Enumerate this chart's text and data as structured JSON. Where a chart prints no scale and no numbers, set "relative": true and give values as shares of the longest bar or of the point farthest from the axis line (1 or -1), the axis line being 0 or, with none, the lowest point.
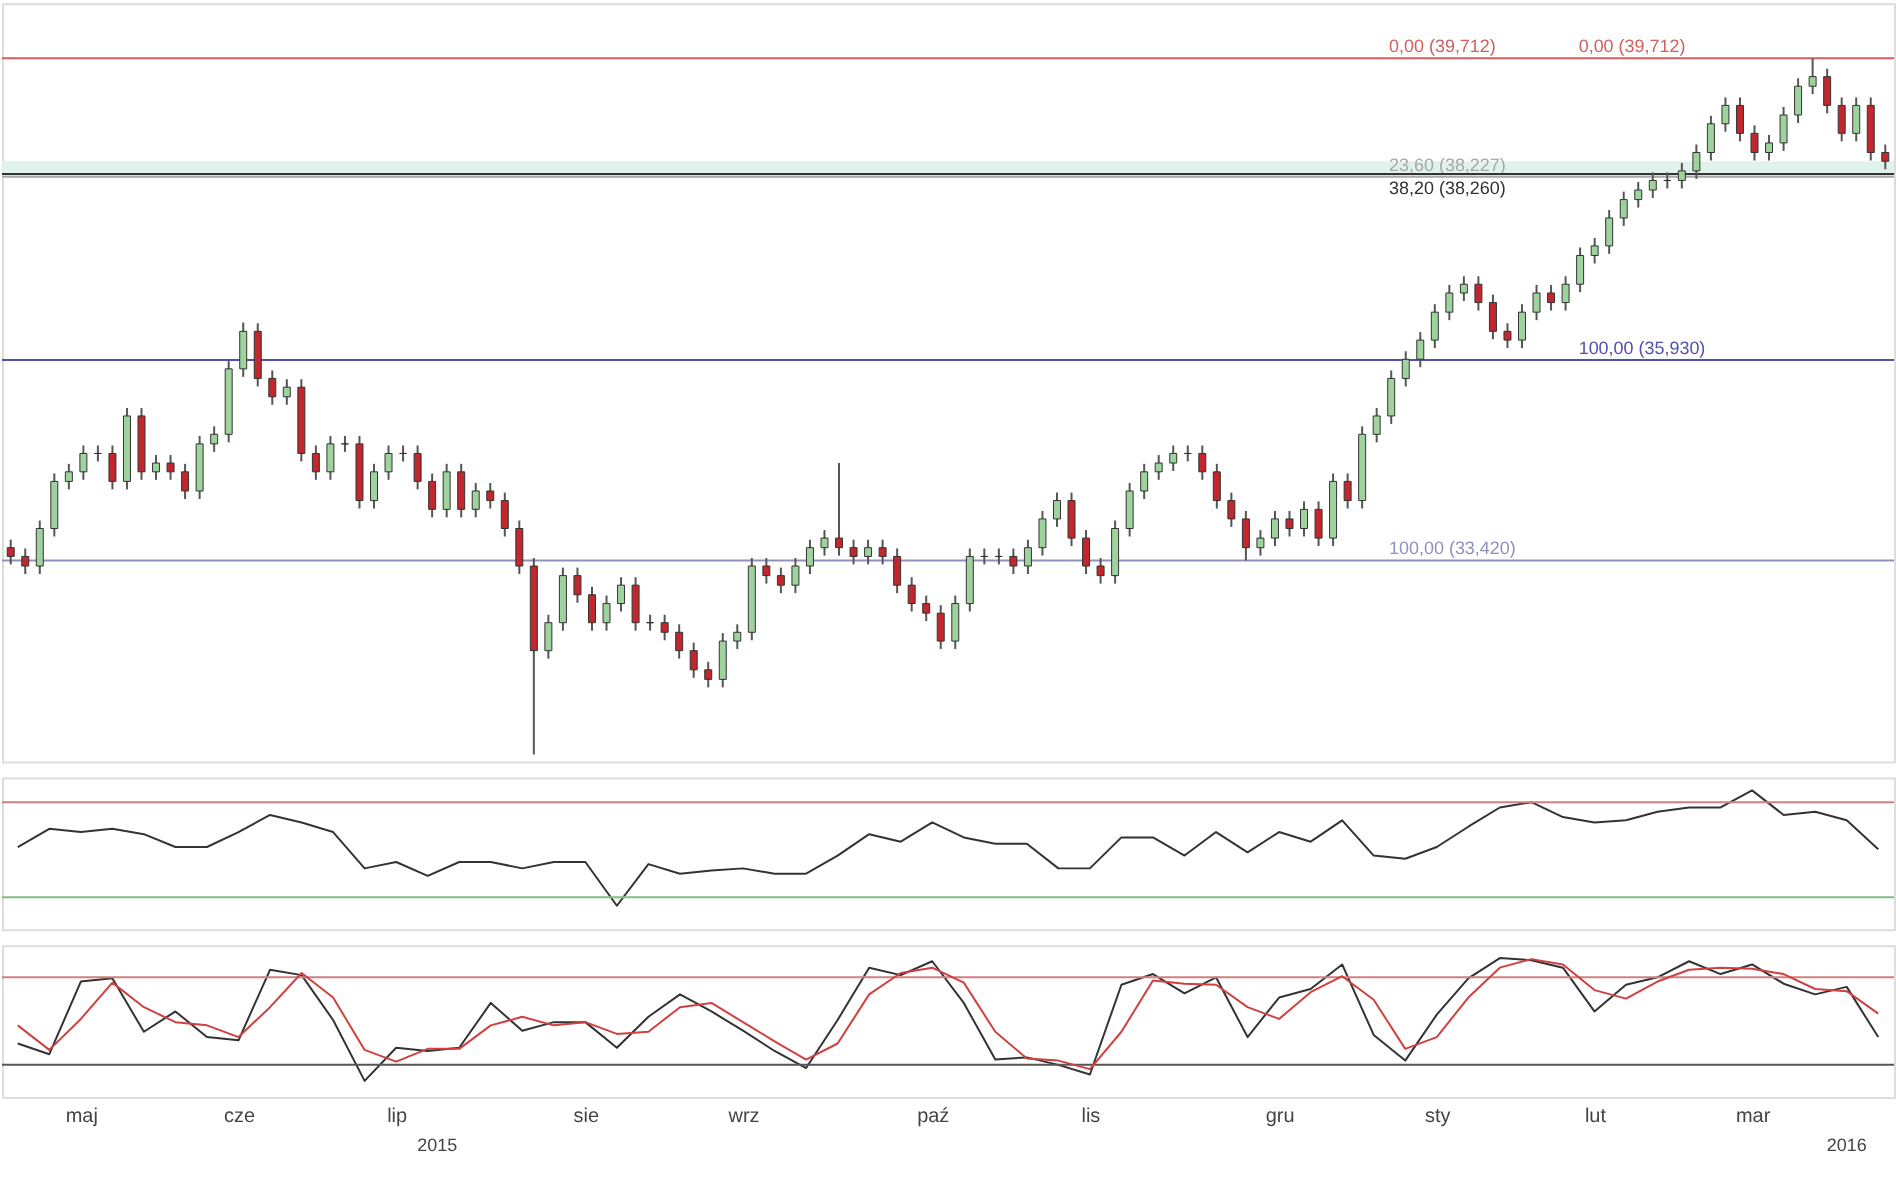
{
  "chart_data": [
    {
      "type": "candlestick",
      "tick_labels": false,
      "ylim": [
        30.9,
        40.4
      ],
      "categories": [
        null,
        null,
        null,
        null,
        null,
        null,
        null,
        null,
        null,
        null,
        null,
        null,
        null,
        null,
        null,
        null,
        null,
        null,
        null,
        null,
        null,
        null,
        null,
        null,
        null,
        null,
        null,
        null,
        null,
        null,
        null,
        null,
        null,
        null,
        null,
        null,
        null,
        null,
        null,
        null,
        null,
        null,
        null,
        null,
        null,
        null,
        null,
        null,
        null,
        null,
        null,
        null,
        null,
        null,
        null,
        null,
        null,
        null,
        null,
        null,
        null,
        null,
        null,
        null,
        null,
        null,
        null,
        null,
        null,
        null,
        null,
        null,
        null,
        null,
        null,
        null,
        null,
        null,
        null,
        null,
        null,
        null,
        null,
        null,
        null,
        null,
        null,
        null,
        null,
        null,
        null,
        null,
        null,
        null,
        null,
        null,
        null,
        null,
        null,
        null,
        null,
        null,
        null,
        null,
        null,
        null,
        null,
        null,
        null,
        null,
        null,
        null,
        null,
        null,
        null,
        null,
        null,
        null,
        null,
        null,
        null,
        null,
        null,
        null,
        null,
        null,
        null,
        null,
        null,
        null
      ],
      "ohlc": [
        [
          33.58,
          33.68,
          33.37,
          33.47
        ],
        [
          33.47,
          33.57,
          33.25,
          33.35
        ],
        [
          33.35,
          33.92,
          33.25,
          33.82
        ],
        [
          33.82,
          34.51,
          33.72,
          34.41
        ],
        [
          34.41,
          34.63,
          34.31,
          34.53
        ],
        [
          34.53,
          34.86,
          34.43,
          34.76
        ],
        [
          34.76,
          34.86,
          34.66,
          34.76
        ],
        [
          34.76,
          34.86,
          34.31,
          34.41
        ],
        [
          34.41,
          35.33,
          34.31,
          35.23
        ],
        [
          35.23,
          35.33,
          34.43,
          34.53
        ],
        [
          34.53,
          34.74,
          34.43,
          34.64
        ],
        [
          34.64,
          34.74,
          34.43,
          34.53
        ],
        [
          34.53,
          34.63,
          34.19,
          34.29
        ],
        [
          34.29,
          34.98,
          34.19,
          34.88
        ],
        [
          34.88,
          35.1,
          34.78,
          35.0
        ],
        [
          35.0,
          35.92,
          34.9,
          35.82
        ],
        [
          35.82,
          36.4,
          35.72,
          36.29
        ],
        [
          36.29,
          36.39,
          35.6,
          35.7
        ],
        [
          35.7,
          35.8,
          35.37,
          35.47
        ],
        [
          35.47,
          35.69,
          35.37,
          35.59
        ],
        [
          35.59,
          35.69,
          34.66,
          34.76
        ],
        [
          34.76,
          34.86,
          34.43,
          34.53
        ],
        [
          34.53,
          34.98,
          34.43,
          34.88
        ],
        [
          34.88,
          34.98,
          34.78,
          34.88
        ],
        [
          34.88,
          34.98,
          34.07,
          34.17
        ],
        [
          34.17,
          34.63,
          34.07,
          34.53
        ],
        [
          34.53,
          34.86,
          34.43,
          34.76
        ],
        [
          34.76,
          34.86,
          34.66,
          34.76
        ],
        [
          34.76,
          34.86,
          34.31,
          34.41
        ],
        [
          34.41,
          34.51,
          33.96,
          34.06
        ],
        [
          34.06,
          34.63,
          33.96,
          34.53
        ],
        [
          34.53,
          34.63,
          33.96,
          34.06
        ],
        [
          34.06,
          34.39,
          33.96,
          34.29
        ],
        [
          34.29,
          34.39,
          34.07,
          34.17
        ],
        [
          34.17,
          34.27,
          33.72,
          33.82
        ],
        [
          33.82,
          33.92,
          33.25,
          33.35
        ],
        [
          33.35,
          33.45,
          30.99,
          32.29
        ],
        [
          32.29,
          32.74,
          32.19,
          32.64
        ],
        [
          32.64,
          33.33,
          32.54,
          33.23
        ],
        [
          33.23,
          33.33,
          32.89,
          32.99
        ],
        [
          32.99,
          33.09,
          32.54,
          32.64
        ],
        [
          32.64,
          32.98,
          32.54,
          32.88
        ],
        [
          32.88,
          33.21,
          32.78,
          33.11
        ],
        [
          33.11,
          33.21,
          32.54,
          32.64
        ],
        [
          32.64,
          32.74,
          32.54,
          32.64
        ],
        [
          32.64,
          32.74,
          32.42,
          32.52
        ],
        [
          32.52,
          32.62,
          32.19,
          32.29
        ],
        [
          32.29,
          32.39,
          31.95,
          32.05
        ],
        [
          32.05,
          32.15,
          31.83,
          31.93
        ],
        [
          31.93,
          32.51,
          31.83,
          32.41
        ],
        [
          32.41,
          32.62,
          32.31,
          32.52
        ],
        [
          32.52,
          33.45,
          32.42,
          33.35
        ],
        [
          33.35,
          33.45,
          33.13,
          33.23
        ],
        [
          33.23,
          33.33,
          33.01,
          33.11
        ],
        [
          33.11,
          33.45,
          33.01,
          33.35
        ],
        [
          33.35,
          33.68,
          33.25,
          33.58
        ],
        [
          33.58,
          33.8,
          33.48,
          33.7
        ],
        [
          33.7,
          34.64,
          33.48,
          33.58
        ],
        [
          33.58,
          33.68,
          33.37,
          33.47
        ],
        [
          33.47,
          33.68,
          33.37,
          33.58
        ],
        [
          33.58,
          33.68,
          33.37,
          33.47
        ],
        [
          33.47,
          33.57,
          33.01,
          33.11
        ],
        [
          33.11,
          33.21,
          32.78,
          32.88
        ],
        [
          32.88,
          32.98,
          32.66,
          32.76
        ],
        [
          32.76,
          32.86,
          32.31,
          32.41
        ],
        [
          32.41,
          32.98,
          32.31,
          32.88
        ],
        [
          32.88,
          33.57,
          32.78,
          33.47
        ],
        [
          33.47,
          33.57,
          33.37,
          33.47
        ],
        [
          33.47,
          33.57,
          33.37,
          33.47
        ],
        [
          33.47,
          33.57,
          33.25,
          33.35
        ],
        [
          33.35,
          33.68,
          33.25,
          33.58
        ],
        [
          33.58,
          34.04,
          33.48,
          33.94
        ],
        [
          33.94,
          34.27,
          33.84,
          34.17
        ],
        [
          34.17,
          34.27,
          33.6,
          33.7
        ],
        [
          33.7,
          33.8,
          33.25,
          33.35
        ],
        [
          33.35,
          33.45,
          33.13,
          33.23
        ],
        [
          33.23,
          33.92,
          33.13,
          33.82
        ],
        [
          33.82,
          34.39,
          33.72,
          34.29
        ],
        [
          34.29,
          34.63,
          34.19,
          34.53
        ],
        [
          34.53,
          34.74,
          34.43,
          34.64
        ],
        [
          34.64,
          34.86,
          34.54,
          34.76
        ],
        [
          34.76,
          34.86,
          34.66,
          34.76
        ],
        [
          34.76,
          34.86,
          34.43,
          34.53
        ],
        [
          34.53,
          34.63,
          34.07,
          34.17
        ],
        [
          34.17,
          34.27,
          33.84,
          33.94
        ],
        [
          33.94,
          34.04,
          33.42,
          33.58
        ],
        [
          33.58,
          33.8,
          33.48,
          33.7
        ],
        [
          33.7,
          34.04,
          33.6,
          33.94
        ],
        [
          33.94,
          34.04,
          33.72,
          33.82
        ],
        [
          33.82,
          34.16,
          33.72,
          34.06
        ],
        [
          34.06,
          34.16,
          33.6,
          33.7
        ],
        [
          33.7,
          34.51,
          33.6,
          34.41
        ],
        [
          34.41,
          34.51,
          34.07,
          34.17
        ],
        [
          34.17,
          35.1,
          34.07,
          35.0
        ],
        [
          35.0,
          35.33,
          34.9,
          35.23
        ],
        [
          35.23,
          35.8,
          35.13,
          35.7
        ],
        [
          35.7,
          36.04,
          35.6,
          35.94
        ],
        [
          35.94,
          36.28,
          35.84,
          36.18
        ],
        [
          36.18,
          36.63,
          36.08,
          36.53
        ],
        [
          36.53,
          36.87,
          36.43,
          36.77
        ],
        [
          36.77,
          36.98,
          36.67,
          36.88
        ],
        [
          36.88,
          36.98,
          36.55,
          36.65
        ],
        [
          36.65,
          36.75,
          36.19,
          36.29
        ],
        [
          36.29,
          36.39,
          36.08,
          36.18
        ],
        [
          36.18,
          36.63,
          36.08,
          36.53
        ],
        [
          36.53,
          36.87,
          36.43,
          36.77
        ],
        [
          36.77,
          36.87,
          36.55,
          36.65
        ],
        [
          36.65,
          36.98,
          36.55,
          36.88
        ],
        [
          36.88,
          37.34,
          36.78,
          37.24
        ],
        [
          37.24,
          37.46,
          37.14,
          37.36
        ],
        [
          37.36,
          37.81,
          37.26,
          37.71
        ],
        [
          37.71,
          38.04,
          37.61,
          37.94
        ],
        [
          37.94,
          38.16,
          37.84,
          38.06
        ],
        [
          38.06,
          38.28,
          37.96,
          38.18
        ],
        [
          38.18,
          38.28,
          38.08,
          38.18
        ],
        [
          38.18,
          38.4,
          38.08,
          38.3
        ],
        [
          38.3,
          38.63,
          38.2,
          38.53
        ],
        [
          38.53,
          38.99,
          38.43,
          38.89
        ],
        [
          38.89,
          39.22,
          38.79,
          39.12
        ],
        [
          39.12,
          39.22,
          38.67,
          38.77
        ],
        [
          38.77,
          38.87,
          38.43,
          38.53
        ],
        [
          38.53,
          38.75,
          38.43,
          38.65
        ],
        [
          38.65,
          39.1,
          38.55,
          39.0
        ],
        [
          39.0,
          39.46,
          38.9,
          39.36
        ],
        [
          39.36,
          39.71,
          39.26,
          39.48
        ],
        [
          39.48,
          39.58,
          39.02,
          39.12
        ],
        [
          39.12,
          39.22,
          38.67,
          38.77
        ],
        [
          38.77,
          39.22,
          38.67,
          39.12
        ],
        [
          39.12,
          39.22,
          38.43,
          38.53
        ],
        [
          38.53,
          38.63,
          38.32,
          38.42
        ]
      ],
      "bands": [
        {
          "axis": "y",
          "from": 38.23,
          "to": 38.42,
          "color": "#dff3ec"
        }
      ],
      "ref_lines": [
        {
          "axis": "y",
          "value": 39.712,
          "label": "0,00 (39,712)",
          "color": "#d06060"
        },
        {
          "axis": "y",
          "value": 38.227,
          "label": "23,60 (38,227)",
          "color": "#a8a8a8"
        },
        {
          "axis": "y",
          "value": 38.26,
          "label": "38,20 (38,260)",
          "color": "#333333"
        },
        {
          "axis": "y",
          "value": 33.42,
          "label": "100,00 (33,420)",
          "color": "#9090c0"
        },
        {
          "axis": "y",
          "value": 35.93,
          "label": "100,00 (35,930)",
          "color": "#5050b0"
        }
      ],
      "annotations": [
        {
          "text": "0,00 (39,712)",
          "y": 39.712
        }
      ]
    },
    {
      "type": "line",
      "relative": true,
      "tick_labels": false,
      "categories": [
        null,
        null,
        null,
        null,
        null,
        null,
        null,
        null,
        null,
        null,
        null,
        null,
        null,
        null,
        null,
        null,
        null,
        null,
        null,
        null,
        null,
        null,
        null,
        null,
        null,
        null,
        null,
        null,
        null,
        null,
        null,
        null,
        null,
        null,
        null,
        null,
        null,
        null,
        null,
        null,
        null,
        null,
        null,
        null,
        null,
        null,
        null,
        null,
        null,
        null,
        null,
        null,
        null,
        null,
        null,
        null,
        null,
        null,
        null,
        null
      ],
      "series": [
        {
          "color": "#333333",
          "values": [
            0.47,
            0.64,
            0.61,
            0.64,
            0.59,
            0.47,
            0.47,
            0.61,
            0.77,
            0.7,
            0.61,
            0.27,
            0.33,
            0.2,
            0.33,
            0.33,
            0.27,
            0.33,
            0.33,
            -0.08,
            0.31,
            0.22,
            0.25,
            0.27,
            0.22,
            0.22,
            0.39,
            0.59,
            0.52,
            0.7,
            0.56,
            0.5,
            0.5,
            0.27,
            0.27,
            0.56,
            0.56,
            0.39,
            0.61,
            0.42,
            0.61,
            0.52,
            0.72,
            0.39,
            0.36,
            0.47,
            0.66,
            0.84,
            0.89,
            0.75,
            0.7,
            0.72,
            0.8,
            0.84,
            0.84,
            1,
            0.77,
            0.8,
            0.72,
            0.45
          ]
        }
      ],
      "ref_lines": [
        {
          "axis": "y",
          "value": 0.89,
          "color": "#d08080"
        },
        {
          "axis": "y",
          "value": 0,
          "color": "#80c080"
        }
      ]
    },
    {
      "type": "line",
      "relative": true,
      "categories": [
        null,
        null,
        "maj",
        null,
        null,
        null,
        null,
        "cze",
        null,
        null,
        null,
        null,
        "lip",
        null,
        null,
        null,
        null,
        null,
        "sie",
        null,
        null,
        null,
        null,
        "wrz",
        null,
        null,
        null,
        null,
        null,
        "paź",
        null,
        null,
        null,
        null,
        "lis",
        null,
        null,
        null,
        null,
        null,
        "gru",
        null,
        null,
        null,
        null,
        "sty",
        null,
        null,
        null,
        null,
        "lut",
        null,
        null,
        null,
        null,
        "mar",
        null,
        null,
        null,
        null
      ],
      "series": [
        {
          "color": "#333333",
          "values": [
            0.2,
            0.1,
            0.78,
            0.81,
            0.31,
            0.5,
            0.26,
            0.23,
            0.89,
            0.84,
            0.42,
            -0.15,
            0.16,
            0.13,
            0.16,
            0.58,
            0.32,
            0.4,
            0.4,
            0.16,
            0.45,
            0.66,
            0.5,
            0.32,
            0.13,
            -0.03,
            0.42,
            0.91,
            0.84,
            0.97,
            0.58,
            0.05,
            0.07,
            0,
            -0.09,
            0.75,
            0.85,
            0.67,
            0.82,
            0.26,
            0.63,
            0.71,
            0.94,
            0.28,
            0.04,
            0.47,
            0.81,
            1,
            0.98,
            0.91,
            0.5,
            0.75,
            0.82,
            0.97,
            0.85,
            0.94,
            0.76,
            0.66,
            0.73,
            0.26
          ]
        },
        {
          "color": "#d04040",
          "values": [
            0.37,
            0.14,
            0.43,
            0.77,
            0.54,
            0.4,
            0.37,
            0.26,
            0.54,
            0.86,
            0.63,
            0.14,
            0.03,
            0.15,
            0.15,
            0.37,
            0.45,
            0.37,
            0.4,
            0.29,
            0.31,
            0.54,
            0.58,
            0.4,
            0.22,
            0.05,
            0.2,
            0.66,
            0.86,
            0.91,
            0.77,
            0.31,
            0.06,
            0.04,
            -0.04,
            0.31,
            0.79,
            0.76,
            0.75,
            0.54,
            0.43,
            0.68,
            0.83,
            0.61,
            0.15,
            0.26,
            0.63,
            0.91,
            0.99,
            0.94,
            0.7,
            0.62,
            0.78,
            0.89,
            0.91,
            0.9,
            0.85,
            0.71,
            0.69,
            0.48
          ]
        }
      ],
      "ref_lines": [
        {
          "axis": "y",
          "value": 0.82,
          "color": "#d08080"
        },
        {
          "axis": "y",
          "value": 0,
          "color": "#555555"
        }
      ],
      "annotations": [
        "2015",
        "2016"
      ]
    }
  ]
}
